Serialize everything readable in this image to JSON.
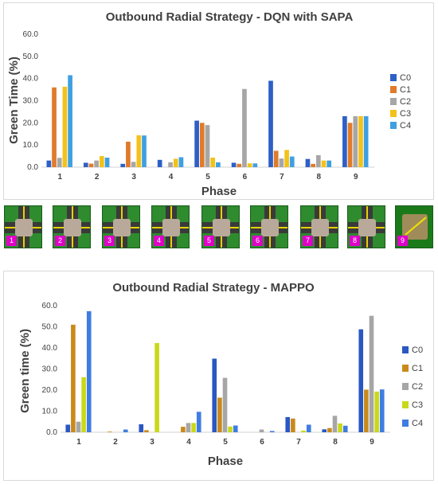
{
  "colors": {
    "C0": "#2e5fc7",
    "C1": "#e07b2a",
    "C2": "#a6a6a6",
    "C3": "#f3c21a",
    "C4": "#3fa0e0"
  },
  "colors_bottom": {
    "C0": "#2a57c2",
    "C1": "#c98a1c",
    "C2": "#a6a6a6",
    "C3": "#c9d81a",
    "C4": "#3f7de0"
  },
  "phase_badges": [
    "1",
    "2",
    "3",
    "4",
    "5",
    "6",
    "7",
    "8",
    "9"
  ],
  "chart_data": [
    {
      "type": "bar",
      "title": "Outbound Radial Strategy - DQN with SAPA",
      "xlabel": "Phase",
      "ylabel": "Green Time (%)",
      "ylim": [
        0,
        60
      ],
      "yticks": [
        "0.0",
        "10.0",
        "20.0",
        "30.0",
        "40.0",
        "50.0",
        "60.0"
      ],
      "categories": [
        "1",
        "2",
        "3",
        "4",
        "5",
        "6",
        "7",
        "8",
        "9"
      ],
      "legend_position": "right",
      "grid": false,
      "series": [
        {
          "name": "C0",
          "values": [
            3,
            2,
            1.5,
            3.3,
            21,
            2,
            39,
            3.7,
            23
          ]
        },
        {
          "name": "C1",
          "values": [
            36,
            1.6,
            11.5,
            0,
            20,
            1.5,
            7.4,
            1.5,
            20
          ]
        },
        {
          "name": "C2",
          "values": [
            4.2,
            3,
            2.4,
            2.2,
            19,
            35.3,
            3.9,
            5.4,
            23
          ]
        },
        {
          "name": "C3",
          "values": [
            36.3,
            5,
            14.4,
            3.8,
            4.3,
            1.7,
            7.8,
            3,
            23
          ]
        },
        {
          "name": "C4",
          "values": [
            41.5,
            4.3,
            14.3,
            4.5,
            2.2,
            1.7,
            4.8,
            3,
            23
          ]
        }
      ]
    },
    {
      "type": "bar",
      "title": "Outbound Radial Strategy - MAPPO",
      "xlabel": "Phase",
      "ylabel": "Green time (%)",
      "ylim": [
        0,
        60
      ],
      "yticks": [
        "0.0",
        "10.0",
        "20.0",
        "30.0",
        "40.0",
        "50.0",
        "60.0"
      ],
      "categories": [
        "1",
        "2",
        "3",
        "4",
        "5",
        "6",
        "7",
        "8",
        "9"
      ],
      "legend_position": "right",
      "grid": false,
      "series": [
        {
          "name": "C0",
          "values": [
            3.6,
            0,
            3.8,
            0,
            34.9,
            0,
            7.2,
            1.4,
            48.8
          ]
        },
        {
          "name": "C1",
          "values": [
            51,
            0.3,
            1,
            2.6,
            16.4,
            0,
            6.5,
            2,
            20.2
          ]
        },
        {
          "name": "C2",
          "values": [
            5,
            0,
            0,
            4.4,
            25.8,
            1.3,
            0,
            7.8,
            55.2
          ]
        },
        {
          "name": "C3",
          "values": [
            26.1,
            0,
            42.3,
            4.4,
            2.7,
            0,
            0.8,
            4.2,
            19.3
          ]
        },
        {
          "name": "C4",
          "values": [
            57.4,
            1.3,
            0,
            9.7,
            3.2,
            0.6,
            3.6,
            3.1,
            20.3
          ]
        }
      ]
    }
  ]
}
